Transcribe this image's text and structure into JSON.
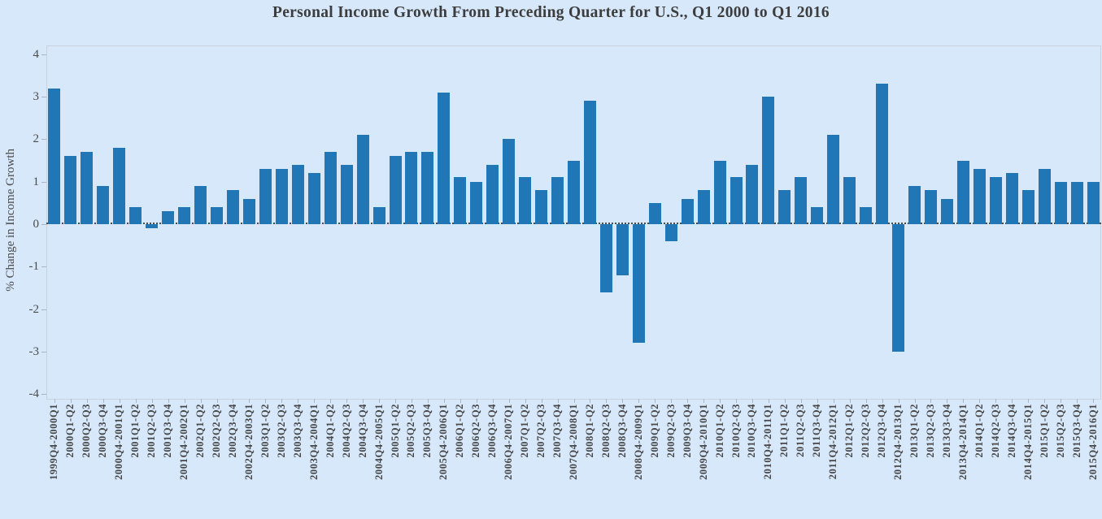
{
  "chart_data": {
    "type": "bar",
    "title": "Personal Income Growth From Preceding Quarter for U.S., Q1 2000 to Q1 2016",
    "xlabel": "",
    "ylabel": "% Change in Income Growth",
    "ylim": [
      -4,
      4
    ],
    "yticks": [
      4,
      3,
      2,
      1,
      0,
      -1,
      -2,
      -3,
      -4
    ],
    "grid": false,
    "legend": "none",
    "zero_line_style": "dotted",
    "bar_color": "#2177b5",
    "background_color": "#d7e8fb",
    "categories": [
      "1999Q4-2000Q1",
      "2000Q1-Q2",
      "2000Q2-Q3",
      "2000Q3-Q4",
      "2000Q4-2001Q1",
      "2001Q1-Q2",
      "2001Q2-Q3",
      "2001Q3-Q4",
      "2001Q4-2002Q1",
      "2002Q1-Q2",
      "2002Q2-Q3",
      "2002Q3-Q4",
      "2002Q4-2003Q1",
      "2003Q1-Q2",
      "2003Q2-Q3",
      "2003Q3-Q4",
      "2003Q4-2004Q1",
      "2004Q1-Q2",
      "2004Q2-Q3",
      "2004Q3-Q4",
      "2004Q4-2005Q1",
      "2005Q1-Q2",
      "2005Q2-Q3",
      "2005Q3-Q4",
      "2005Q4-2006Q1",
      "2006Q1-Q2",
      "2006Q2-Q3",
      "2006Q3-Q4",
      "2006Q4-2007Q1",
      "2007Q1-Q2",
      "2007Q2-Q3",
      "2007Q3-Q4",
      "2007Q4-2008Q1",
      "2008Q1-Q2",
      "2008Q2-Q3",
      "2008Q3-Q4",
      "2008Q4-2009Q1",
      "2009Q1-Q2",
      "2009Q2-Q3",
      "2009Q3-Q4",
      "2009Q4-2010Q1",
      "2010Q1-Q2",
      "2010Q2-Q3",
      "2010Q3-Q4",
      "2010Q4-2011Q1",
      "2011Q1-Q2",
      "2011Q2-Q3",
      "2011Q3-Q4",
      "2011Q4-2012Q1",
      "2012Q1-Q2",
      "2012Q2-Q3",
      "2012Q3-Q4",
      "2012Q4-2013Q1",
      "2013Q1-Q2",
      "2013Q2-Q3",
      "2013Q3-Q4",
      "2013Q4-2014Q1",
      "2014Q1-Q2",
      "2014Q2-Q3",
      "2014Q3-Q4",
      "2014Q4-2015Q1",
      "2015Q1-Q2",
      "2015Q2-Q3",
      "2015Q3-Q4",
      "2015Q4-2016Q1"
    ],
    "values": [
      3.2,
      1.6,
      1.7,
      0.9,
      1.8,
      0.4,
      -0.1,
      0.3,
      0.4,
      0.9,
      0.4,
      0.8,
      0.6,
      1.3,
      1.3,
      1.4,
      1.2,
      1.7,
      1.4,
      2.1,
      0.4,
      1.6,
      1.7,
      1.7,
      3.1,
      1.1,
      1.0,
      1.4,
      2.0,
      1.1,
      0.8,
      1.1,
      1.5,
      2.9,
      -1.6,
      -1.2,
      -2.8,
      0.5,
      -0.4,
      0.6,
      0.8,
      1.5,
      1.1,
      1.4,
      3.0,
      0.8,
      1.1,
      0.4,
      2.1,
      1.1,
      0.4,
      3.3,
      -3.0,
      0.9,
      0.8,
      0.6,
      1.5,
      1.3,
      1.1,
      1.2,
      0.8,
      1.3,
      1.0,
      1.0,
      1.0
    ]
  }
}
